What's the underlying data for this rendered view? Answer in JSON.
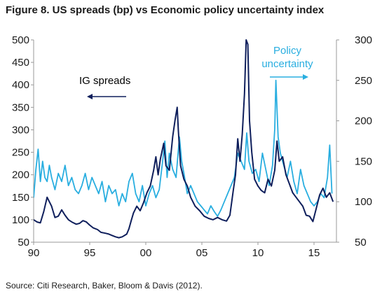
{
  "title": "Figure 8. US spreads (bp) vs Economic policy uncertainty index",
  "source": "Source: Citi Research, Baker, Bloom & Davis (2012).",
  "colors": {
    "ig": "#0f1f5c",
    "policy": "#29aee0",
    "axis": "#999999"
  },
  "chart_data": {
    "type": "line",
    "title": "Figure 8. US spreads (bp) vs Economic policy uncertainty index",
    "x_ticks": [
      "90",
      "95",
      "00",
      "05",
      "10",
      "15"
    ],
    "x_tick_values": [
      1990,
      1995,
      2000,
      2005,
      2010,
      2015
    ],
    "xlim": [
      1990,
      2017
    ],
    "y_left": {
      "ticks": [
        "50",
        "100",
        "150",
        "200",
        "250",
        "300",
        "350",
        "400",
        "450",
        "500"
      ],
      "lim": [
        50,
        500
      ]
    },
    "y_right": {
      "ticks": [
        "50",
        "100",
        "150",
        "200",
        "250",
        "300"
      ],
      "lim": [
        50,
        300
      ]
    },
    "grid": false,
    "annotations": {
      "ig": {
        "text": "IG spreads",
        "arrow": "left"
      },
      "policy": {
        "line1": "Policy",
        "line2": "uncertainty",
        "arrow": "right"
      }
    },
    "series": [
      {
        "name": "IG spreads",
        "axis": "left",
        "x": [
          1990.0,
          1990.3,
          1990.6,
          1990.9,
          1991.2,
          1991.6,
          1991.9,
          1992.2,
          1992.5,
          1992.8,
          1993.1,
          1993.4,
          1993.8,
          1994.1,
          1994.4,
          1994.7,
          1995.0,
          1995.3,
          1995.7,
          1996.0,
          1996.4,
          1996.7,
          1997.0,
          1997.3,
          1997.6,
          1997.9,
          1998.1,
          1998.3,
          1998.5,
          1998.7,
          1998.9,
          1999.2,
          1999.5,
          1999.8,
          2000.1,
          2000.4,
          2000.7,
          2000.9,
          2001.1,
          2001.3,
          2001.6,
          2001.8,
          2002.1,
          2002.4,
          2002.6,
          2002.8,
          2002.9,
          2003.1,
          2003.4,
          2003.7,
          2004.0,
          2004.4,
          2004.8,
          2005.2,
          2005.6,
          2006.0,
          2006.4,
          2006.8,
          2007.2,
          2007.5,
          2007.8,
          2008.0,
          2008.2,
          2008.4,
          2008.6,
          2008.8,
          2008.95,
          2009.1,
          2009.25,
          2009.45,
          2009.7,
          2010.0,
          2010.3,
          2010.6,
          2010.9,
          2011.2,
          2011.5,
          2011.7,
          2011.9,
          2012.2,
          2012.5,
          2012.8,
          2013.1,
          2013.4,
          2013.7,
          2014.0,
          2014.3,
          2014.6,
          2014.9,
          2015.2,
          2015.5,
          2015.8,
          2016.1,
          2016.4,
          2016.7
        ],
        "values": [
          100,
          95,
          93,
          118,
          150,
          130,
          105,
          108,
          122,
          110,
          100,
          95,
          90,
          92,
          98,
          95,
          88,
          82,
          78,
          72,
          70,
          68,
          65,
          62,
          60,
          62,
          65,
          68,
          80,
          98,
          115,
          130,
          120,
          138,
          160,
          175,
          210,
          240,
          200,
          235,
          270,
          220,
          210,
          285,
          320,
          350,
          300,
          220,
          190,
          175,
          150,
          130,
          120,
          108,
          103,
          100,
          105,
          100,
          97,
          110,
          165,
          200,
          280,
          230,
          290,
          380,
          500,
          490,
          320,
          250,
          190,
          175,
          165,
          160,
          190,
          175,
          210,
          275,
          230,
          240,
          200,
          180,
          160,
          150,
          140,
          130,
          110,
          108,
          96,
          125,
          155,
          170,
          150,
          160,
          140
        ]
      },
      {
        "name": "Policy uncertainty",
        "axis": "right",
        "x": [
          1990.0,
          1990.2,
          1990.4,
          1990.6,
          1990.8,
          1991.0,
          1991.2,
          1991.4,
          1991.6,
          1991.9,
          1992.2,
          1992.5,
          1992.8,
          1993.1,
          1993.4,
          1993.7,
          1994.0,
          1994.3,
          1994.6,
          1994.9,
          1995.2,
          1995.5,
          1995.8,
          1996.1,
          1996.4,
          1996.7,
          1997.0,
          1997.3,
          1997.6,
          1997.9,
          1998.2,
          1998.5,
          1998.8,
          1999.1,
          1999.4,
          1999.7,
          2000.0,
          2000.3,
          2000.6,
          2000.9,
          2001.2,
          2001.5,
          2001.7,
          2001.9,
          2002.1,
          2002.4,
          2002.7,
          2003.0,
          2003.2,
          2003.4,
          2003.7,
          2004.0,
          2004.3,
          2004.6,
          2004.9,
          2005.2,
          2005.5,
          2005.8,
          2006.1,
          2006.4,
          2006.7,
          2007.0,
          2007.3,
          2007.6,
          2007.9,
          2008.2,
          2008.5,
          2008.8,
          2009.0,
          2009.2,
          2009.5,
          2009.8,
          2010.1,
          2010.4,
          2010.7,
          2011.0,
          2011.3,
          2011.5,
          2011.6,
          2011.8,
          2012.0,
          2012.3,
          2012.6,
          2012.9,
          2013.2,
          2013.5,
          2013.8,
          2014.1,
          2014.4,
          2014.7,
          2015.0,
          2015.3,
          2015.6,
          2015.9,
          2016.2,
          2016.4,
          2016.6
        ],
        "values": [
          105,
          140,
          165,
          125,
          150,
          130,
          125,
          145,
          130,
          115,
          135,
          125,
          145,
          120,
          130,
          115,
          110,
          120,
          135,
          115,
          130,
          120,
          110,
          125,
          100,
          120,
          110,
          115,
          95,
          110,
          100,
          125,
          135,
          110,
          100,
          120,
          95,
          110,
          120,
          105,
          115,
          150,
          175,
          130,
          160,
          140,
          130,
          180,
          150,
          135,
          110,
          120,
          110,
          100,
          95,
          90,
          85,
          95,
          88,
          82,
          90,
          100,
          110,
          120,
          130,
          160,
          150,
          140,
          185,
          150,
          135,
          140,
          125,
          160,
          140,
          120,
          145,
          190,
          250,
          180,
          160,
          145,
          130,
          150,
          125,
          110,
          140,
          120,
          110,
          100,
          95,
          100,
          110,
          105,
          130,
          170,
          110
        ]
      }
    ]
  }
}
